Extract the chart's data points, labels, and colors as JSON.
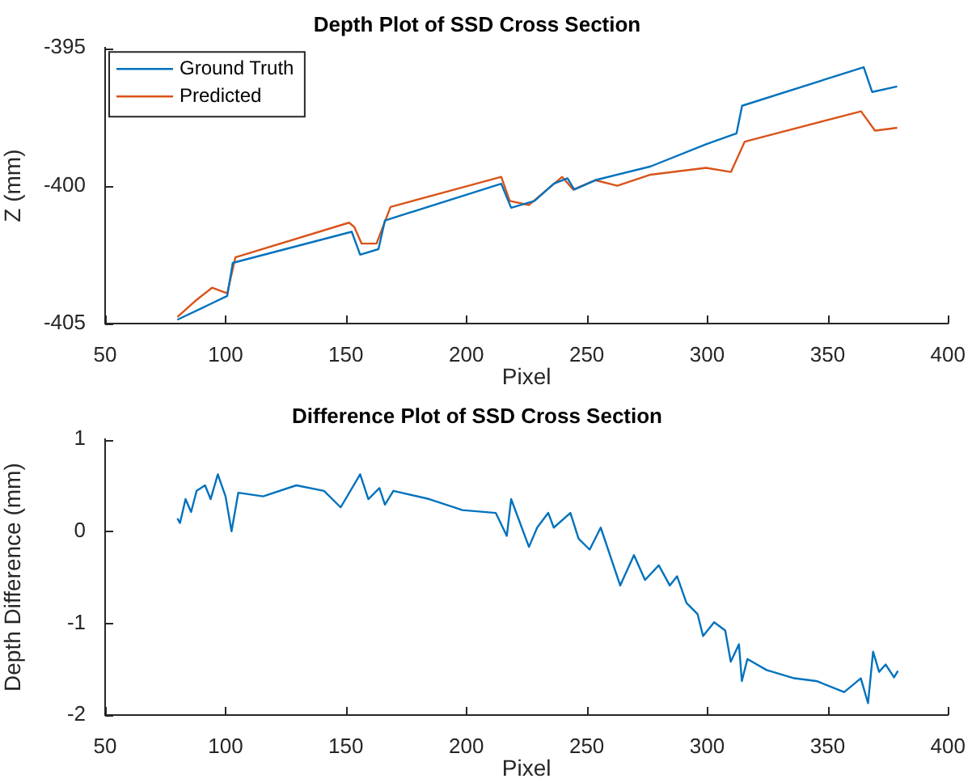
{
  "chart_data": [
    {
      "type": "line",
      "title": "Depth Plot of SSD Cross Section",
      "xlabel": "Pixel",
      "ylabel": "Z (mm)",
      "xlim": [
        50,
        400
      ],
      "xticks": [
        50,
        100,
        150,
        200,
        250,
        300,
        350,
        400
      ],
      "ylim": [
        -405,
        -395
      ],
      "yticks": [
        -405,
        -400,
        -395
      ],
      "legend": "top left",
      "marker": "none",
      "series": [
        {
          "name": "Ground Truth",
          "color": "#0072bd",
          "x": [
            80,
            100.7,
            103,
            152.4,
            155.9,
            163.5,
            166.2,
            214.5,
            218.6,
            228.3,
            236.3,
            242,
            244.8,
            253.5,
            276.5,
            299.5,
            312.2,
            314.5,
            365,
            368.5,
            378.9
          ],
          "values": [
            -404.86,
            -404.0,
            -402.8,
            -401.67,
            -402.5,
            -402.3,
            -401.26,
            -399.93,
            -400.8,
            -400.55,
            -399.93,
            -399.73,
            -400.14,
            -399.8,
            -399.3,
            -398.5,
            -398.1,
            -397.1,
            -395.7,
            -396.6,
            -396.4
          ]
        },
        {
          "name": "Predicted",
          "color": "#d95319",
          "x": [
            80,
            88,
            94.4,
            100.7,
            104.1,
            151.3,
            153.5,
            156.5,
            162.7,
            168.5,
            214.5,
            218,
            226,
            239.8,
            244.4,
            253.5,
            262.7,
            276.5,
            299.5,
            309.9,
            315.6,
            363.9,
            369.7,
            378.9
          ],
          "values": [
            -404.76,
            -404.14,
            -403.7,
            -403.9,
            -402.6,
            -401.34,
            -401.5,
            -402.1,
            -402.1,
            -400.77,
            -399.68,
            -400.55,
            -400.7,
            -399.68,
            -400.14,
            -399.8,
            -400.0,
            -399.6,
            -399.35,
            -399.5,
            -398.4,
            -397.3,
            -398.0,
            -397.9
          ]
        }
      ]
    },
    {
      "type": "line",
      "title": "Difference Plot of SSD Cross Section",
      "xlabel": "Pixel",
      "ylabel": "Depth Difference (mm)",
      "xlim": [
        50,
        400
      ],
      "xticks": [
        50,
        100,
        150,
        200,
        250,
        300,
        350,
        400
      ],
      "ylim": [
        -2,
        1
      ],
      "yticks": [
        -2,
        -1,
        0,
        1
      ],
      "marker": "none",
      "series": [
        {
          "color": "#0072bd",
          "x": [
            80,
            81.1,
            83.4,
            85.7,
            88,
            91.5,
            93.8,
            96.8,
            100,
            102.5,
            105.3,
            115.6,
            129.4,
            140.9,
            147.8,
            155.9,
            159.3,
            163.9,
            166.2,
            169.7,
            184.6,
            198.4,
            212.2,
            216.8,
            218.6,
            226,
            229.4,
            234,
            236.3,
            243.2,
            246.6,
            251.2,
            255.8,
            263.9,
            269.6,
            274.2,
            279.9,
            284.5,
            287.5,
            291.4,
            296,
            298.3,
            302.9,
            307.5,
            309.8,
            313.2,
            314.4,
            316.7,
            324.7,
            336.2,
            345.4,
            356.9,
            363.8,
            366.8,
            368.9,
            371.4,
            374.1,
            377.6,
            379.2
          ],
          "values": [
            0.14,
            0.09,
            0.35,
            0.21,
            0.44,
            0.5,
            0.35,
            0.62,
            0.38,
            0,
            0.42,
            0.38,
            0.5,
            0.44,
            0.26,
            0.62,
            0.35,
            0.47,
            0.29,
            0.44,
            0.35,
            0.23,
            0.2,
            -0.05,
            0.35,
            -0.17,
            0.04,
            0.2,
            0.04,
            0.2,
            -0.08,
            -0.2,
            0.04,
            -0.59,
            -0.26,
            -0.53,
            -0.37,
            -0.59,
            -0.49,
            -0.78,
            -0.9,
            -1.14,
            -0.99,
            -1.08,
            -1.42,
            -1.23,
            -1.63,
            -1.39,
            -1.51,
            -1.6,
            -1.63,
            -1.75,
            -1.6,
            -1.87,
            -1.31,
            -1.53,
            -1.45,
            -1.59,
            -1.52
          ]
        }
      ]
    }
  ]
}
